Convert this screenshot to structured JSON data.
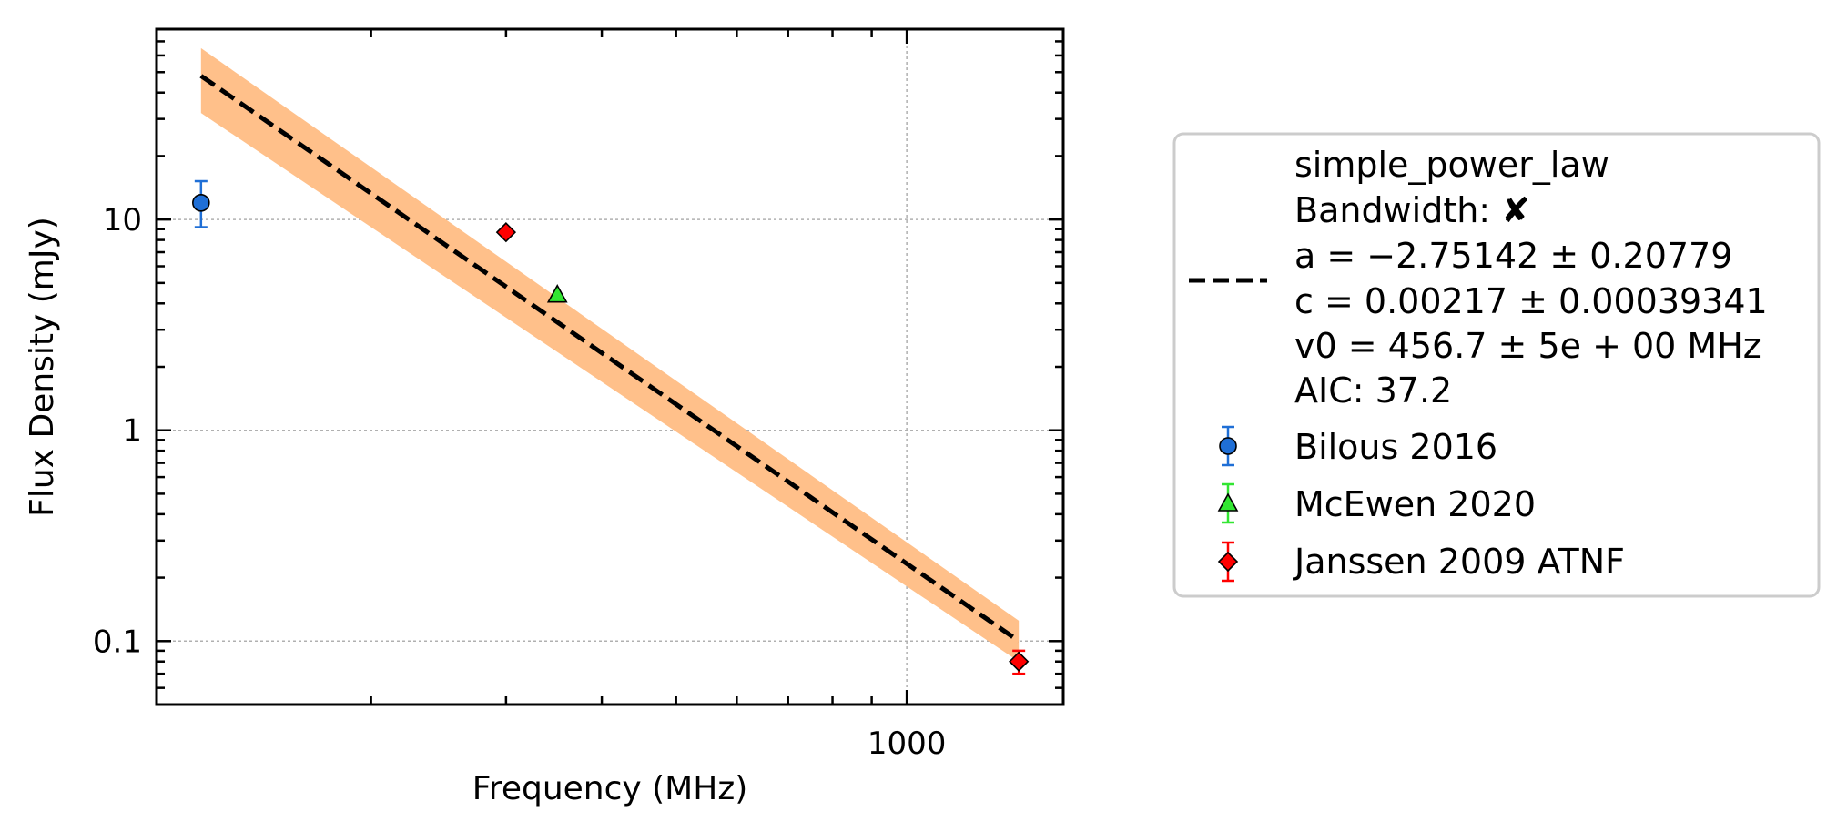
{
  "chart_data": {
    "type": "scatter",
    "xlabel": "Frequency (MHz)",
    "ylabel": "Flux Density (mJy)",
    "xscale": "log",
    "yscale": "log",
    "xlim": [
      105,
      1600
    ],
    "ylim": [
      0.05,
      80
    ],
    "grid": true,
    "legend_position": "outside-right",
    "x_major_ticks": [
      {
        "value": 1000,
        "label": "1000"
      }
    ],
    "y_major_ticks": [
      {
        "value": 0.1,
        "label": "0.1"
      },
      {
        "value": 1,
        "label": "1"
      },
      {
        "value": 10,
        "label": "10"
      }
    ],
    "fit": {
      "model": "simple_power_law",
      "label_lines": [
        "simple_power_law",
        "Bandwidth: ✘",
        "a = −2.75142 ± 0.20779",
        "c = 0.00217 ± 0.00039341",
        "v0 = 456.7 ± 5e + 00 MHz",
        "AIC: 37.2"
      ],
      "a": -2.75142,
      "a_err": 0.20779,
      "c": 0.00217,
      "c_err": 0.00039341,
      "v0": 456.7,
      "x_range": [
        120,
        1400
      ],
      "line_color": "#000000",
      "band_color": "#ffc08a",
      "line_points": [
        [
          120,
          48
        ],
        [
          1400,
          0.1
        ]
      ],
      "band_upper": [
        [
          120,
          65
        ],
        [
          1400,
          0.125
        ]
      ],
      "band_lower": [
        [
          120,
          32
        ],
        [
          1400,
          0.08
        ]
      ]
    },
    "series": [
      {
        "name": "Bilous 2016",
        "marker": "circle",
        "color": "#1f6fd6",
        "error_color": "#1f6fd6",
        "points": [
          {
            "x": 120,
            "y": 12,
            "y_err_low": 2.8,
            "y_err_high": 3.2
          }
        ]
      },
      {
        "name": "McEwen 2020",
        "marker": "triangle",
        "color": "#32e632",
        "error_color": "#32e632",
        "points": [
          {
            "x": 350,
            "y": 4.4
          }
        ]
      },
      {
        "name": "Janssen 2009 ATNF",
        "marker": "diamond",
        "color": "#ff0000",
        "error_color": "#ff0000",
        "points": [
          {
            "x": 300,
            "y": 8.7
          },
          {
            "x": 1400,
            "y": 0.08,
            "y_err_low": 0.01,
            "y_err_high": 0.01
          }
        ]
      }
    ]
  }
}
